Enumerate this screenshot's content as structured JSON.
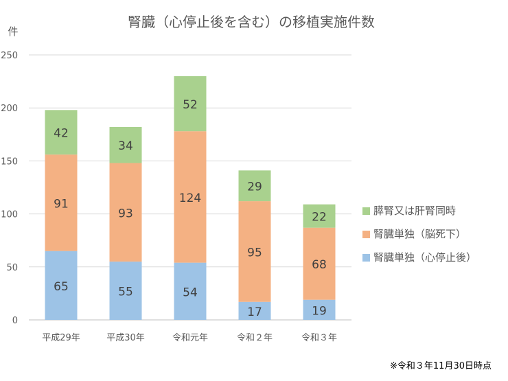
{
  "chart_data": {
    "type": "bar",
    "stacked": true,
    "title": "腎臓（心停止後を含む）の移植実施件数",
    "ylabel": "件",
    "xlabel": "",
    "ylim": [
      0,
      250
    ],
    "yticks": [
      0,
      50,
      100,
      150,
      200,
      250
    ],
    "grid": true,
    "legend_position": "right",
    "categories": [
      "平成29年",
      "平成30年",
      "令和元年",
      "令和２年",
      "令和３年"
    ],
    "series": [
      {
        "name": "腎臓単独（心停止後）",
        "values": [
          65,
          55,
          54,
          17,
          19
        ],
        "color": "#9DC3E6"
      },
      {
        "name": "腎臓単独（脳死下）",
        "values": [
          91,
          93,
          124,
          95,
          68
        ],
        "color": "#F4B183"
      },
      {
        "name": "膵腎又は肝腎同時",
        "values": [
          42,
          34,
          52,
          29,
          22
        ],
        "color": "#A9D18E"
      }
    ]
  },
  "footnote": "※令和３年11月30日時点"
}
